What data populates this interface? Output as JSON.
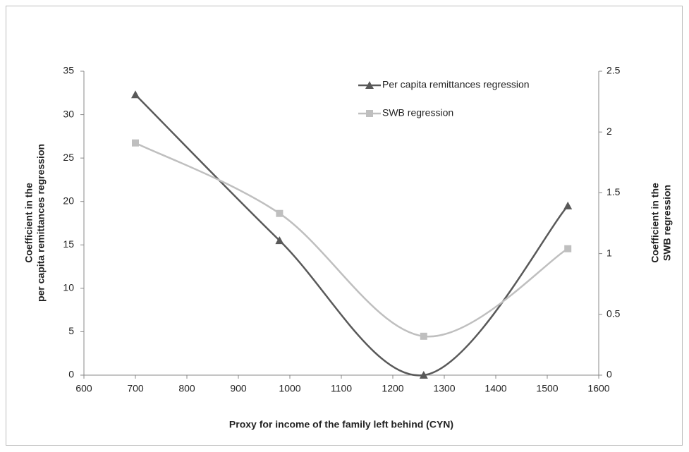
{
  "chart_data": {
    "type": "line",
    "x": [
      700,
      980,
      1260,
      1540
    ],
    "series": [
      {
        "name": "Per capita remittances regression",
        "color": "#595959",
        "marker": "triangle",
        "axis": "y",
        "values": [
          32.3,
          15.5,
          0,
          19.5
        ]
      },
      {
        "name": "SWB regression",
        "color": "#bfbfbf",
        "marker": "square",
        "axis": "y2",
        "values": [
          1.91,
          1.33,
          0.32,
          1.04
        ]
      }
    ],
    "xlabel": "Proxy for income of the family left behind (CYN)",
    "ylabel": [
      "Coefficient in the",
      "per capita remittances regression"
    ],
    "y2label": [
      "Coefficient in the",
      "SWB regression"
    ],
    "xlim": [
      600,
      1600
    ],
    "xticks": [
      600,
      700,
      800,
      900,
      1000,
      1100,
      1200,
      1300,
      1400,
      1500,
      1600
    ],
    "ylim": [
      0,
      35
    ],
    "yticks": [
      0,
      5,
      10,
      15,
      20,
      25,
      30,
      35
    ],
    "y2lim": [
      0,
      2.5
    ],
    "y2ticks": [
      0,
      0.5,
      1,
      1.5,
      2,
      2.5
    ],
    "smooth": true,
    "grid": false
  }
}
